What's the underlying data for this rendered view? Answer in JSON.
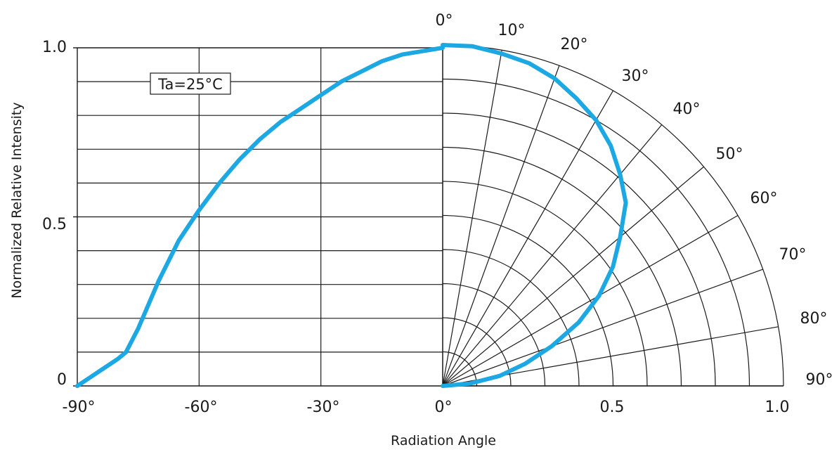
{
  "chart_data": {
    "type": "line",
    "xlabel": "Radiation Angle",
    "ylabel": "Normalized Relative Intensity",
    "annotation": "Ta=25°C",
    "left_panel": {
      "x_ticks": [
        -90,
        -60,
        -30,
        0
      ],
      "x_tick_labels": [
        "-90°",
        "-60°",
        "-30°",
        "0°"
      ],
      "y_ticks": [
        0,
        0.5,
        1.0
      ],
      "y_tick_labels": [
        "0",
        "0.5",
        "1.0"
      ],
      "xlim": [
        -90,
        0
      ],
      "ylim": [
        0,
        1.0
      ],
      "grid": true
    },
    "polar_panel": {
      "angle_labels": [
        "0°",
        "10°",
        "20°",
        "30°",
        "40°",
        "50°",
        "60°",
        "70°",
        "80°",
        "90°"
      ],
      "radius_tick_labels": [
        "0.5",
        "1.0"
      ],
      "radius_ticks": [
        0.5,
        1.0
      ],
      "rings": [
        0.1,
        0.2,
        0.3,
        0.4,
        0.5,
        0.6,
        0.7,
        0.8,
        0.9,
        1.0
      ],
      "grid": true
    },
    "series": [
      {
        "color": "#1ca8e3",
        "x": [
          -90,
          -85,
          -80,
          -78,
          -75,
          -70,
          -65,
          -60,
          -55,
          -50,
          -45,
          -40,
          -35,
          -30,
          -25,
          -20,
          -15,
          -10,
          -5,
          0,
          5,
          10,
          15,
          20,
          25,
          30,
          35,
          40,
          45,
          50,
          55,
          60,
          65,
          70,
          75,
          80,
          85,
          90
        ],
        "y": [
          0.0,
          0.04,
          0.08,
          0.1,
          0.17,
          0.31,
          0.43,
          0.52,
          0.6,
          0.67,
          0.73,
          0.78,
          0.82,
          0.86,
          0.9,
          0.93,
          0.96,
          0.98,
          0.99,
          1.0,
          1.0,
          0.99,
          0.98,
          0.96,
          0.93,
          0.9,
          0.86,
          0.81,
          0.76,
          0.68,
          0.61,
          0.53,
          0.44,
          0.34,
          0.25,
          0.17,
          0.08,
          0.0
        ]
      }
    ]
  }
}
